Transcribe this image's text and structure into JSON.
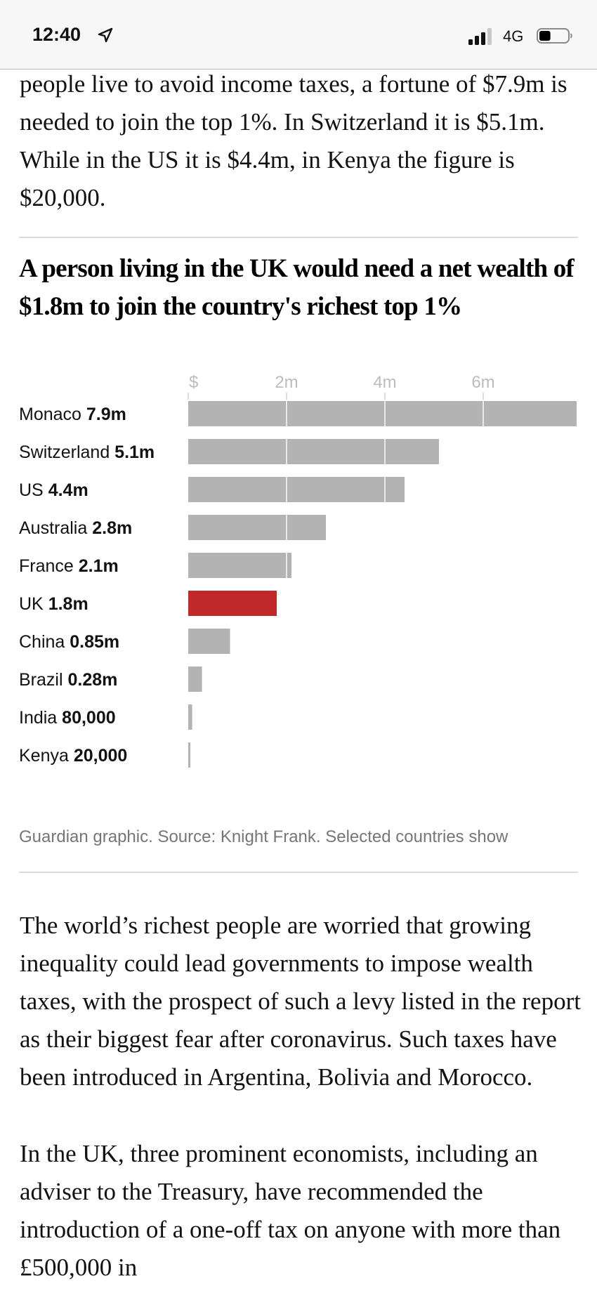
{
  "status_bar": {
    "time": "12:40",
    "location_icon": "location-arrow-icon",
    "network": "4G",
    "signal_icon": "cellular-signal-icon",
    "signal_bars": 3,
    "signal_max": 4,
    "battery_icon": "battery-icon",
    "battery_level": 0.4
  },
  "article": {
    "intro_paragraph": "people live to avoid income taxes, a fortune of $7.9m is needed to join the top 1%. In Switzerland it is $5.1m. While in the US it is $4.4m, in Kenya the figure is $20,000.",
    "paragraph_2": "The world’s richest people are worried that growing inequality could lead governments to impose wealth taxes, with the prospect of such a levy listed in the report as their biggest fear after coronavirus. Such taxes have been introduced in Argentina, Bolivia and Morocco.",
    "paragraph_3": "In the UK, three prominent economists, including an adviser to the Treasury, have recommended the introduction of a one-off tax on anyone with more than £500,000 in"
  },
  "graphic": {
    "caption": "Guardian graphic. Source: Knight Frank. Selected countries show"
  },
  "chart_data": {
    "type": "bar",
    "orientation": "horizontal",
    "title": "A person living in the UK would need a net wealth of $1.8m to join the country's richest top 1%",
    "xlabel": "",
    "ylabel": "",
    "xlim": [
      0,
      7.9
    ],
    "x_unit": "millions USD",
    "grid": true,
    "ticks": [
      {
        "value": 0,
        "label": "$"
      },
      {
        "value": 2,
        "label": "2m"
      },
      {
        "value": 4,
        "label": "4m"
      },
      {
        "value": 6,
        "label": "6m"
      }
    ],
    "categories": [
      "Monaco",
      "Switzerland",
      "US",
      "Australia",
      "France",
      "UK",
      "China",
      "Brazil",
      "India",
      "Kenya"
    ],
    "values": [
      7.9,
      5.1,
      4.4,
      2.8,
      2.1,
      1.8,
      0.85,
      0.28,
      0.08,
      0.02
    ],
    "value_labels": [
      "7.9m",
      "5.1m",
      "4.4m",
      "2.8m",
      "2.1m",
      "1.8m",
      "0.85m",
      "0.28m",
      "80,000",
      "20,000"
    ],
    "highlight": "UK",
    "colors": {
      "bar": "#b3b3b3",
      "highlight": "#c0282a",
      "gridline": "#e8e8e8",
      "tick_label": "#bdbdbd",
      "label": "#121212"
    }
  }
}
